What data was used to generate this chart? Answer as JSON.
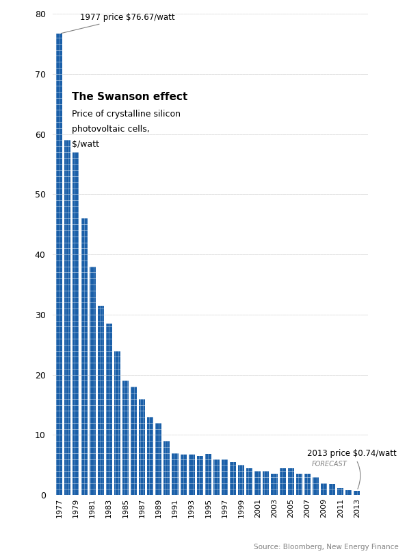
{
  "years": [
    1977,
    1978,
    1979,
    1980,
    1981,
    1982,
    1983,
    1984,
    1985,
    1986,
    1987,
    1988,
    1989,
    1990,
    1991,
    1992,
    1993,
    1994,
    1995,
    1996,
    1997,
    1998,
    1999,
    2000,
    2001,
    2002,
    2003,
    2004,
    2005,
    2006,
    2007,
    2008,
    2009,
    2010,
    2011,
    2012,
    2013
  ],
  "prices": [
    76.67,
    59.0,
    57.0,
    46.0,
    38.0,
    31.5,
    28.5,
    24.0,
    19.0,
    18.0,
    16.0,
    13.0,
    12.0,
    9.0,
    7.0,
    6.8,
    6.7,
    6.5,
    6.9,
    6.0,
    6.0,
    5.5,
    5.0,
    4.5,
    4.0,
    4.0,
    3.5,
    4.5,
    4.5,
    3.5,
    3.5,
    3.0,
    2.0,
    1.8,
    1.2,
    0.85,
    0.74
  ],
  "bar_color": "#1a5fa8",
  "grid_color": "#cccccc",
  "bg_color": "#ffffff",
  "title_bold": "The Swanson effect",
  "title_sub1": "Price of crystalline silicon",
  "title_sub2": "photovoltaic cells,",
  "title_sub3": "$/watt",
  "annotation_1977": "1977 price $76.67/watt",
  "annotation_2013": "2013 price $0.74/watt",
  "annotation_forecast": "FORECAST",
  "source": "Source: Bloomberg, New Energy Finance",
  "ylim": [
    0,
    80
  ],
  "yticks": [
    0,
    10,
    20,
    30,
    40,
    50,
    60,
    70,
    80
  ]
}
